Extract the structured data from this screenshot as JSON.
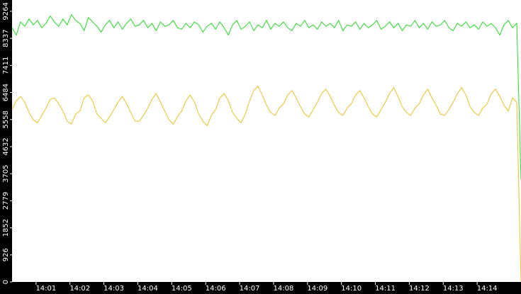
{
  "chart_data": {
    "type": "line",
    "xlim": [
      840,
      855
    ],
    "xticks": [
      {
        "value": 841,
        "label": "14:01"
      },
      {
        "value": 842,
        "label": "14:02"
      },
      {
        "value": 843,
        "label": "14:03"
      },
      {
        "value": 844,
        "label": "14:04"
      },
      {
        "value": 845,
        "label": "14:05"
      },
      {
        "value": 846,
        "label": "14:06"
      },
      {
        "value": 847,
        "label": "14:07"
      },
      {
        "value": 848,
        "label": "14:08"
      },
      {
        "value": 849,
        "label": "14:09"
      },
      {
        "value": 850,
        "label": "14:10"
      },
      {
        "value": 851,
        "label": "14:11"
      },
      {
        "value": 852,
        "label": "14:12"
      },
      {
        "value": 853,
        "label": "14:13"
      },
      {
        "value": 854,
        "label": "14:14"
      }
    ],
    "ylim": [
      0,
      9650
    ],
    "yticks": [
      0,
      926,
      1852,
      2779,
      3705,
      4632,
      5558,
      6484,
      7411,
      8337,
      9264
    ],
    "x": [
      840,
      840.125,
      840.25,
      840.375,
      840.5,
      840.625,
      840.75,
      840.875,
      841,
      841.125,
      841.25,
      841.375,
      841.5,
      841.625,
      841.75,
      841.875,
      842,
      842.125,
      842.25,
      842.375,
      842.5,
      842.625,
      842.75,
      842.875,
      843,
      843.125,
      843.25,
      843.375,
      843.5,
      843.625,
      843.75,
      843.875,
      844,
      844.125,
      844.25,
      844.375,
      844.5,
      844.625,
      844.75,
      844.875,
      845,
      845.125,
      845.25,
      845.375,
      845.5,
      845.625,
      845.75,
      845.875,
      846,
      846.125,
      846.25,
      846.375,
      846.5,
      846.625,
      846.75,
      846.875,
      847,
      847.125,
      847.25,
      847.375,
      847.5,
      847.625,
      847.75,
      847.875,
      848,
      848.125,
      848.25,
      848.375,
      848.5,
      848.625,
      848.75,
      848.875,
      849,
      849.125,
      849.25,
      849.375,
      849.5,
      849.625,
      849.75,
      849.875,
      850,
      850.125,
      850.25,
      850.375,
      850.5,
      850.625,
      850.75,
      850.875,
      851,
      851.125,
      851.25,
      851.375,
      851.5,
      851.625,
      851.75,
      851.875,
      852,
      852.125,
      852.25,
      852.375,
      852.5,
      852.625,
      852.75,
      852.875,
      853,
      853.125,
      853.25,
      853.375,
      853.5,
      853.625,
      853.75,
      853.875,
      854,
      854.125,
      854.25,
      854.375,
      854.5,
      854.625,
      854.75,
      854.875,
      855
    ],
    "series": [
      {
        "color": "#22dd22",
        "values": [
          8700,
          8450,
          8900,
          8750,
          9000,
          8800,
          8950,
          8700,
          8850,
          9100,
          8900,
          8750,
          9000,
          8800,
          9150,
          8950,
          8850,
          8600,
          9050,
          8900,
          8750,
          8550,
          8800,
          8950,
          8700,
          8900,
          8650,
          8850,
          9000,
          8750,
          8800,
          8950,
          8700,
          8850,
          8600,
          8900,
          8750,
          8800,
          8950,
          8700,
          8650,
          8850,
          8700,
          8900,
          8800,
          8550,
          8750,
          8850,
          8650,
          8900,
          8700,
          8450,
          8800,
          8950,
          8650,
          8750,
          8900,
          8600,
          8800,
          8700,
          8950,
          8650,
          8850,
          8750,
          8900,
          8700,
          8600,
          8850,
          8750,
          8950,
          8700,
          8800,
          8650,
          8900,
          8750,
          8850,
          8700,
          8950,
          8600,
          8800,
          8750,
          8900,
          8650,
          8850,
          8700,
          8800,
          8950,
          8650,
          8750,
          8900,
          8700,
          8850,
          8600,
          8800,
          8750,
          8950,
          8700,
          8850,
          8650,
          8900,
          8750,
          8800,
          8950,
          8700,
          8600,
          8850,
          8750,
          8900,
          8700,
          8800,
          8650,
          8900,
          8750,
          8850,
          8700,
          8450,
          8800,
          8950,
          8700,
          8850,
          3500
        ]
      },
      {
        "color": "#f0c020",
        "values": [
          5900,
          6200,
          6350,
          6150,
          5800,
          5550,
          5450,
          5700,
          5950,
          6250,
          6300,
          6100,
          5850,
          5500,
          5400,
          5750,
          5850,
          6300,
          6400,
          6200,
          5750,
          5600,
          5450,
          5650,
          5900,
          6150,
          6350,
          6100,
          5800,
          5500,
          5500,
          5700,
          5950,
          6250,
          6450,
          6150,
          5850,
          5550,
          5400,
          5650,
          5850,
          6200,
          6400,
          6150,
          5750,
          5500,
          5350,
          5700,
          5900,
          6300,
          6450,
          6200,
          5800,
          5600,
          5450,
          5750,
          6200,
          6550,
          6700,
          6400,
          6050,
          5800,
          5700,
          5950,
          6100,
          6400,
          6550,
          6300,
          6000,
          5750,
          5650,
          5900,
          6150,
          6450,
          6600,
          6350,
          6050,
          5800,
          5700,
          5950,
          6100,
          6400,
          6550,
          6300,
          6000,
          5750,
          5650,
          5900,
          6150,
          6450,
          6650,
          6350,
          6000,
          5800,
          5700,
          5950,
          6100,
          6400,
          6600,
          6300,
          6050,
          5750,
          5700,
          5900,
          6150,
          6450,
          6650,
          6400,
          6000,
          5800,
          5700,
          5950,
          6100,
          6450,
          6600,
          6350,
          6050,
          5850,
          6300,
          6150,
          0
        ]
      }
    ]
  }
}
